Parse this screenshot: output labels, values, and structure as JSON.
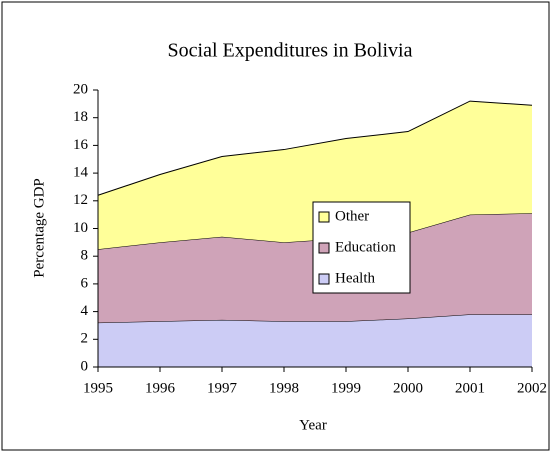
{
  "chart_data": {
    "type": "stacked-area",
    "title": "Social Expenditures in Bolivia",
    "x_label": "Year",
    "y_label": "Percentage GDP",
    "categories": [
      "1995",
      "1996",
      "1997",
      "1998",
      "1999",
      "2000",
      "2001",
      "2002"
    ],
    "series": [
      {
        "name": "Health",
        "color": "#ccccf5",
        "values": [
          3.2,
          3.3,
          3.4,
          3.3,
          3.3,
          3.5,
          3.8,
          3.8
        ]
      },
      {
        "name": "Education",
        "color": "#cfa3b8",
        "values": [
          5.3,
          5.7,
          6.0,
          5.7,
          6.0,
          6.2,
          7.2,
          7.3
        ]
      },
      {
        "name": "Other",
        "color": "#ffff99",
        "values": [
          3.9,
          4.9,
          5.8,
          6.7,
          7.2,
          7.3,
          8.2,
          7.8
        ]
      }
    ],
    "ylim": [
      0,
      20
    ],
    "yticks": [
      0,
      2,
      4,
      6,
      8,
      10,
      12,
      14,
      16,
      18,
      20
    ],
    "grid": false
  }
}
